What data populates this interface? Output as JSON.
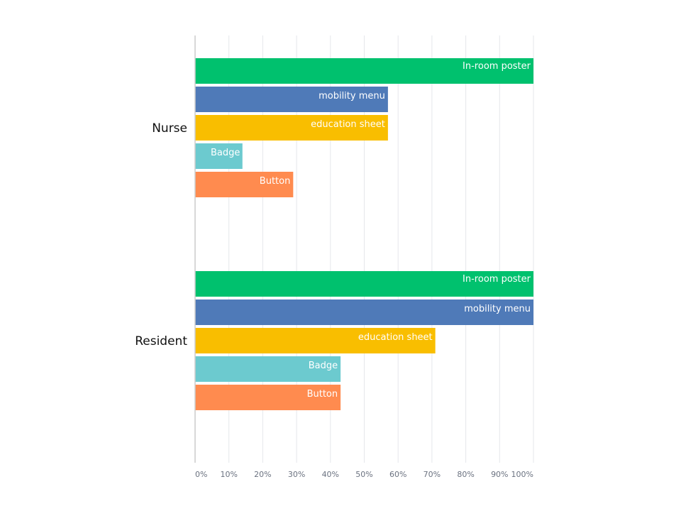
{
  "chart_data": {
    "type": "bar",
    "orientation": "horizontal",
    "categories": [
      "Nurse",
      "Resident"
    ],
    "series": [
      {
        "name": "In-room poster",
        "color": "#00c16e",
        "values": [
          100,
          100
        ]
      },
      {
        "name": "mobility menu",
        "color": "#4f7ab8",
        "values": [
          57,
          100
        ]
      },
      {
        "name": "education sheet",
        "color": "#f9be00",
        "values": [
          57,
          71
        ]
      },
      {
        "name": "Badge",
        "color": "#6ccacf",
        "values": [
          14,
          43
        ]
      },
      {
        "name": "Button",
        "color": "#ff8b4f",
        "values": [
          29,
          43
        ]
      }
    ],
    "x_ticks": [
      "0%",
      "10%",
      "20%",
      "30%",
      "40%",
      "50%",
      "60%",
      "70%",
      "80%",
      "90%",
      "100%"
    ],
    "xlim": [
      0,
      100
    ],
    "grid": true,
    "legend": "none",
    "title": "",
    "xlabel": "",
    "ylabel": ""
  }
}
